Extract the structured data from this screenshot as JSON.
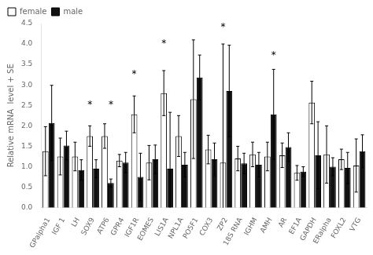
{
  "chart_data": {
    "type": "bar",
    "categories": [
      "GPalpha1",
      "IGF 1",
      "LH",
      "SOX9",
      "ATP6",
      "GPR4",
      "IGF1R",
      "EOMES",
      "LIS1A",
      "NPL1A",
      "PO5F1",
      "COX3",
      "ZP2",
      "18S RNA",
      "IGHM",
      "AMH",
      "AR",
      "EF1A",
      "GAPDH",
      "ERalpha",
      "FOXL2",
      "VTG"
    ],
    "series": [
      {
        "name": "female",
        "color": "#ffffff",
        "values": [
          1.38,
          1.25,
          1.25,
          1.75,
          1.75,
          1.15,
          2.28,
          1.1,
          2.8,
          1.75,
          2.65,
          1.42,
          1.1,
          1.2,
          1.3,
          1.25,
          1.28,
          0.85,
          2.57,
          1.3,
          1.18,
          1.03
        ],
        "errors": [
          0.6,
          0.45,
          0.35,
          0.25,
          0.3,
          0.15,
          0.45,
          0.42,
          0.55,
          0.5,
          1.45,
          0.35,
          2.9,
          0.3,
          0.3,
          0.35,
          0.3,
          0.18,
          0.52,
          0.7,
          0.25,
          0.65
        ]
      },
      {
        "name": "male",
        "color": "#111111",
        "values": [
          2.07,
          1.52,
          0.92,
          0.95,
          0.6,
          1.1,
          0.75,
          1.18,
          0.95,
          1.05,
          3.18,
          1.18,
          2.85,
          1.08,
          1.05,
          2.28,
          1.48,
          0.88,
          1.28,
          1.0,
          0.97,
          1.38
        ],
        "errors": [
          0.92,
          0.35,
          0.25,
          0.22,
          0.1,
          0.25,
          0.58,
          0.35,
          1.38,
          0.3,
          0.55,
          0.4,
          1.12,
          0.25,
          0.3,
          1.1,
          0.35,
          0.12,
          0.82,
          0.22,
          0.38,
          0.4
        ]
      }
    ],
    "ylabel": "Relative mRNA  level + SE",
    "ylim": [
      0,
      4.5
    ],
    "yticks": [
      {
        "value": 0,
        "label": "0.0"
      },
      0.5,
      {
        "value": 1.0,
        "label": "1.0"
      },
      1.5,
      {
        "value": 2.0,
        "label": "2.0"
      },
      2.5,
      {
        "value": 3.0,
        "label": "3.0"
      },
      3.5,
      {
        "value": 4.0,
        "label": "4.0"
      },
      4.5
    ],
    "grid": false,
    "legend": "upper left",
    "annotations": [
      {
        "text": "*",
        "category": "SOX9",
        "series": "female",
        "y": 2.55
      },
      {
        "text": "*",
        "category": "ATP6",
        "series": "male",
        "y": 2.55
      },
      {
        "text": "*",
        "category": "IGF1R",
        "series": "female",
        "y": 3.3
      },
      {
        "text": "*",
        "category": "LIS1A",
        "series": "female",
        "y": 4.05
      },
      {
        "text": "*",
        "category": "ZP2",
        "series": "female",
        "y": 4.45
      },
      {
        "text": "*",
        "category": "AMH",
        "series": "male",
        "y": 3.75
      }
    ]
  }
}
